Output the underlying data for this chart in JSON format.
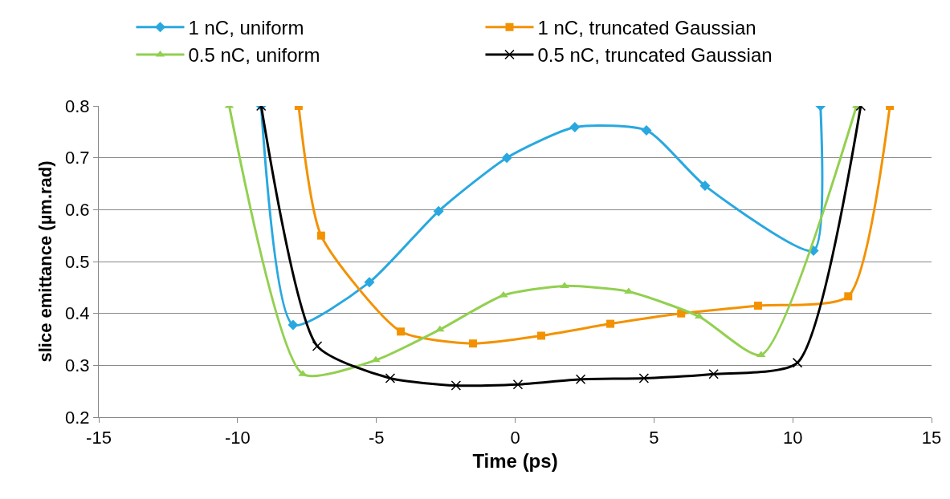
{
  "chart_data": {
    "type": "line",
    "xlabel": "Time (ps)",
    "ylabel": "slice emittance (µm.rad)",
    "xlim": [
      -15,
      15
    ],
    "xticks": [
      -15,
      -10,
      -5,
      0,
      5,
      10,
      15
    ],
    "ylim": [
      0.2,
      0.8
    ],
    "yticks": [
      0.2,
      0.3,
      0.4,
      0.5,
      0.6,
      0.7,
      0.8
    ],
    "grid": "y",
    "legend": "top",
    "line_style": "solid",
    "series": [
      {
        "name": "1 nC, uniform",
        "color": "#29a8e0",
        "marker": "diamond",
        "x": [
          -9.15,
          -8.0,
          -5.25,
          -2.76,
          -0.3,
          2.15,
          4.73,
          6.84,
          10.75,
          11.0
        ],
        "values": [
          0.8,
          0.378,
          0.46,
          0.597,
          0.7,
          0.759,
          0.753,
          0.646,
          0.521,
          0.8
        ]
      },
      {
        "name": "1 nC, truncated Gaussian",
        "color": "#f39200",
        "marker": "square",
        "x": [
          -7.8,
          -6.99,
          -4.12,
          -1.52,
          0.94,
          3.43,
          5.98,
          8.75,
          12.0,
          13.5
        ],
        "values": [
          0.8,
          0.55,
          0.365,
          0.342,
          0.357,
          0.38,
          0.4,
          0.415,
          0.433,
          0.8
        ]
      },
      {
        "name": "0.5 nC, uniform",
        "color": "#92d050",
        "marker": "triangle",
        "x": [
          -10.3,
          -7.65,
          -5.02,
          -2.71,
          -0.42,
          1.78,
          4.09,
          6.63,
          8.86,
          12.3
        ],
        "values": [
          0.8,
          0.283,
          0.31,
          0.369,
          0.435,
          0.453,
          0.442,
          0.394,
          0.32,
          0.8
        ]
      },
      {
        "name": "0.5 nC, truncated Gaussian",
        "color": "#000000",
        "marker": "cross",
        "x": [
          -9.15,
          -7.13,
          -4.5,
          -2.13,
          0.1,
          2.36,
          4.64,
          7.15,
          10.17,
          12.45
        ],
        "values": [
          0.8,
          0.337,
          0.275,
          0.261,
          0.263,
          0.273,
          0.275,
          0.283,
          0.305,
          0.8
        ]
      }
    ]
  }
}
